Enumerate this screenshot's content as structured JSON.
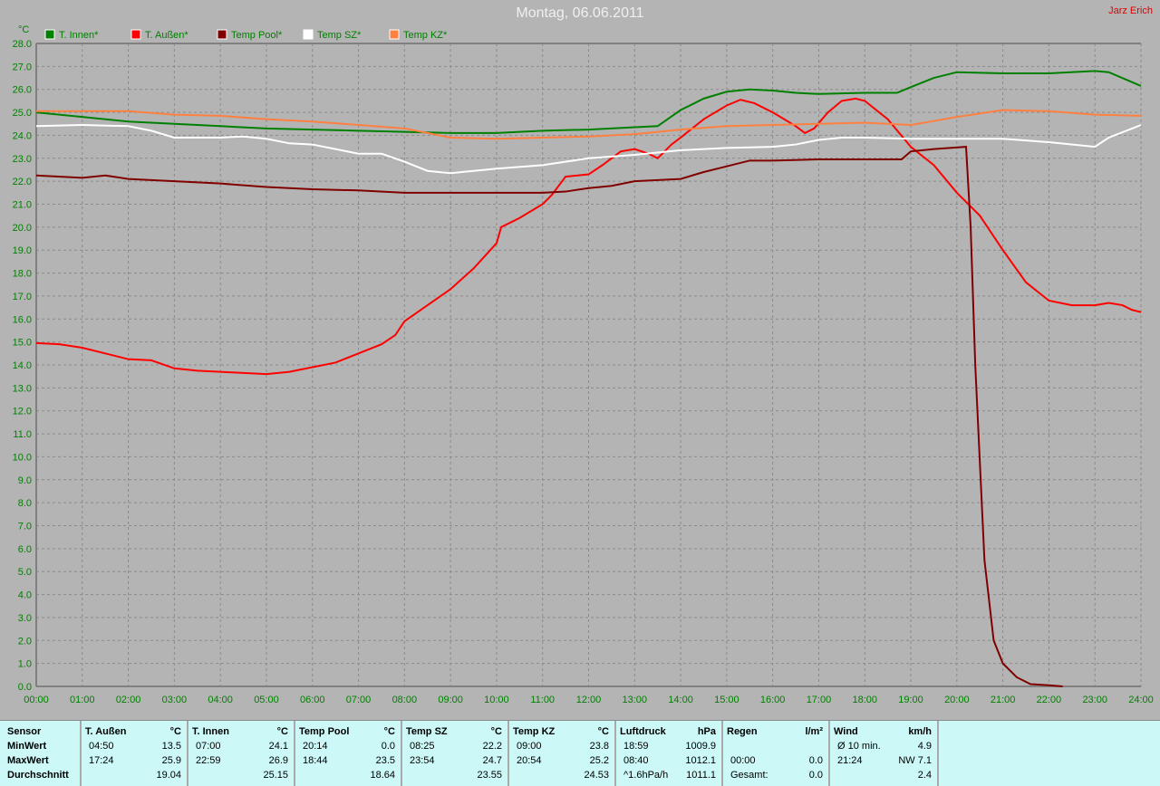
{
  "title": "Montag, 06.06.2011",
  "author": "Jarz Erich",
  "chart_data": {
    "type": "line",
    "ylabel": "°C",
    "ylim": [
      0,
      28
    ],
    "xlim": [
      "00:00",
      "24:00"
    ],
    "grid": true,
    "legend": "top-left",
    "yticks": [
      "0.0",
      "1.0",
      "2.0",
      "3.0",
      "4.0",
      "5.0",
      "6.0",
      "7.0",
      "8.0",
      "9.0",
      "10.0",
      "11.0",
      "12.0",
      "13.0",
      "14.0",
      "15.0",
      "16.0",
      "17.0",
      "18.0",
      "19.0",
      "20.0",
      "21.0",
      "22.0",
      "23.0",
      "24.0",
      "25.0",
      "26.0",
      "27.0",
      "28.0"
    ],
    "xticks": [
      "00:00",
      "01:00",
      "02:00",
      "03:00",
      "04:00",
      "05:00",
      "06:00",
      "07:00",
      "08:00",
      "09:00",
      "10:00",
      "11:00",
      "12:00",
      "13:00",
      "14:00",
      "15:00",
      "16:00",
      "17:00",
      "18:00",
      "19:00",
      "20:00",
      "21:00",
      "22:00",
      "23:00",
      "24:00"
    ],
    "series": [
      {
        "name": "T. Innen*",
        "color": "#008000",
        "x": [
          0,
          1,
          2,
          3,
          4,
          5,
          6,
          7,
          8,
          9,
          10,
          11,
          12,
          13,
          13.5,
          14,
          14.5,
          15,
          15.5,
          16,
          16.5,
          17,
          18,
          18.7,
          19,
          19.5,
          20,
          21,
          22,
          23,
          23.3,
          24
        ],
        "y": [
          25.0,
          24.8,
          24.6,
          24.5,
          24.4,
          24.3,
          24.25,
          24.2,
          24.15,
          24.1,
          24.1,
          24.2,
          24.25,
          24.35,
          24.4,
          25.1,
          25.6,
          25.9,
          26.0,
          25.95,
          25.85,
          25.8,
          25.85,
          25.85,
          26.1,
          26.5,
          26.75,
          26.7,
          26.7,
          26.8,
          26.75,
          26.15
        ]
      },
      {
        "name": "T. Außen*",
        "color": "#ff0000",
        "x": [
          0,
          0.5,
          1,
          1.5,
          2,
          2.5,
          3,
          3.5,
          4,
          4.5,
          5,
          5.5,
          6,
          6.5,
          7,
          7.5,
          7.8,
          8,
          8.5,
          9,
          9.5,
          10,
          10.1,
          10.5,
          11,
          11.2,
          11.5,
          12,
          12.3,
          12.7,
          13,
          13.3,
          13.5,
          13.8,
          14,
          14.5,
          15,
          15.3,
          15.6,
          16,
          16.5,
          16.7,
          16.9,
          17.2,
          17.5,
          17.8,
          18,
          18.5,
          19,
          19.5,
          20,
          20.5,
          21,
          21.5,
          22,
          22.5,
          23,
          23.3,
          23.6,
          23.8,
          24
        ],
        "y": [
          14.95,
          14.9,
          14.75,
          14.5,
          14.25,
          14.2,
          13.85,
          13.75,
          13.7,
          13.65,
          13.6,
          13.7,
          13.9,
          14.1,
          14.5,
          14.9,
          15.3,
          15.9,
          16.6,
          17.3,
          18.2,
          19.3,
          20.0,
          20.4,
          21.0,
          21.4,
          22.2,
          22.3,
          22.7,
          23.3,
          23.4,
          23.2,
          23.0,
          23.6,
          23.9,
          24.7,
          25.3,
          25.55,
          25.4,
          25.0,
          24.4,
          24.1,
          24.3,
          25.0,
          25.5,
          25.6,
          25.5,
          24.7,
          23.5,
          22.7,
          21.5,
          20.5,
          19.0,
          17.6,
          16.8,
          16.6,
          16.6,
          16.7,
          16.6,
          16.4,
          16.3
        ]
      },
      {
        "name": "Temp Pool*",
        "color": "#800000",
        "x": [
          0,
          1,
          1.5,
          2,
          3,
          4,
          5,
          6,
          7,
          8,
          9,
          10,
          11,
          11.5,
          12,
          12.5,
          13,
          14,
          14.5,
          15,
          15.5,
          16,
          17,
          18,
          18.8,
          19,
          19.5,
          20.2,
          20.3,
          20.4,
          20.6,
          20.8,
          21,
          21.3,
          21.6,
          22,
          22.3
        ],
        "y": [
          22.25,
          22.15,
          22.25,
          22.1,
          22.0,
          21.9,
          21.75,
          21.65,
          21.6,
          21.5,
          21.5,
          21.5,
          21.5,
          21.55,
          21.7,
          21.8,
          22.0,
          22.1,
          22.4,
          22.65,
          22.9,
          22.9,
          22.95,
          22.95,
          22.95,
          23.3,
          23.4,
          23.5,
          20.0,
          14.0,
          5.5,
          2.0,
          1.0,
          0.4,
          0.1,
          0.05,
          0.0
        ]
      },
      {
        "name": "Temp SZ*",
        "color": "#ffffff",
        "x": [
          0,
          1,
          2,
          2.5,
          3,
          4,
          4.5,
          5,
          5.5,
          6,
          6.5,
          7,
          7.5,
          8,
          8.5,
          9,
          9.5,
          10,
          11,
          12,
          13,
          14,
          15,
          16,
          16.5,
          17,
          17.5,
          18,
          19,
          20,
          21,
          22,
          23,
          23.3,
          24
        ],
        "y": [
          24.4,
          24.45,
          24.4,
          24.2,
          23.9,
          23.9,
          23.95,
          23.85,
          23.65,
          23.6,
          23.4,
          23.2,
          23.2,
          22.85,
          22.45,
          22.35,
          22.45,
          22.55,
          22.7,
          23.0,
          23.15,
          23.35,
          23.45,
          23.5,
          23.6,
          23.8,
          23.9,
          23.9,
          23.85,
          23.85,
          23.85,
          23.7,
          23.5,
          23.9,
          24.45
        ]
      },
      {
        "name": "Temp KZ*",
        "color": "#ff8040",
        "x": [
          0,
          1,
          2,
          3,
          4,
          5,
          6,
          7,
          8,
          8.5,
          9,
          10,
          11,
          12,
          13,
          14,
          15,
          16,
          17,
          18,
          19,
          20,
          21,
          22,
          23,
          24
        ],
        "y": [
          25.05,
          25.05,
          25.05,
          24.9,
          24.85,
          24.7,
          24.6,
          24.45,
          24.3,
          24.1,
          23.9,
          23.85,
          23.9,
          23.95,
          24.05,
          24.25,
          24.4,
          24.45,
          24.5,
          24.55,
          24.45,
          24.8,
          25.1,
          25.05,
          24.9,
          24.85
        ]
      }
    ]
  },
  "table": {
    "columns": [
      {
        "h": [
          "Sensor",
          ""
        ],
        "rows": [
          [
            "MinWert",
            "",
            ""
          ],
          [
            "MaxWert",
            "",
            ""
          ],
          [
            "Durchschnitt",
            "",
            ""
          ]
        ]
      },
      {
        "h": [
          "T. Außen",
          "°C"
        ],
        "rows": [
          [
            "",
            "04:50",
            "13.5"
          ],
          [
            "",
            "17:24",
            "25.9"
          ],
          [
            "",
            "",
            "19.04"
          ]
        ]
      },
      {
        "h": [
          "T. Innen",
          "°C"
        ],
        "rows": [
          [
            "",
            "07:00",
            "24.1"
          ],
          [
            "",
            "22:59",
            "26.9"
          ],
          [
            "",
            "",
            "25.15"
          ]
        ]
      },
      {
        "h": [
          "Temp Pool",
          "°C"
        ],
        "rows": [
          [
            "",
            "20:14",
            "0.0"
          ],
          [
            "",
            "18:44",
            "23.5"
          ],
          [
            "",
            "",
            "18.64"
          ]
        ]
      },
      {
        "h": [
          "Temp SZ",
          "°C"
        ],
        "rows": [
          [
            "",
            "08:25",
            "22.2"
          ],
          [
            "",
            "23:54",
            "24.7"
          ],
          [
            "",
            "",
            "23.55"
          ]
        ]
      },
      {
        "h": [
          "Temp KZ",
          "°C"
        ],
        "rows": [
          [
            "",
            "09:00",
            "23.8"
          ],
          [
            "",
            "20:54",
            "25.2"
          ],
          [
            "",
            "",
            "24.53"
          ]
        ]
      },
      {
        "h": [
          "Luftdruck",
          "hPa"
        ],
        "rows": [
          [
            "",
            "18:59",
            "1009.9"
          ],
          [
            "",
            "08:40",
            "1012.1"
          ],
          [
            "",
            "^1.6hPa/h",
            "1011.1"
          ]
        ]
      },
      {
        "h": [
          "Regen",
          "l/m²"
        ],
        "rows": [
          [
            "",
            "",
            ""
          ],
          [
            "",
            "00:00",
            "0.0"
          ],
          [
            "",
            "Gesamt:",
            "0.0"
          ]
        ]
      },
      {
        "h": [
          "Wind",
          "km/h"
        ],
        "rows": [
          [
            "",
            "Ø 10 min.",
            "4.9"
          ],
          [
            "",
            "21:24",
            "NW 7.1"
          ],
          [
            "",
            "",
            "2.4"
          ]
        ]
      }
    ]
  }
}
